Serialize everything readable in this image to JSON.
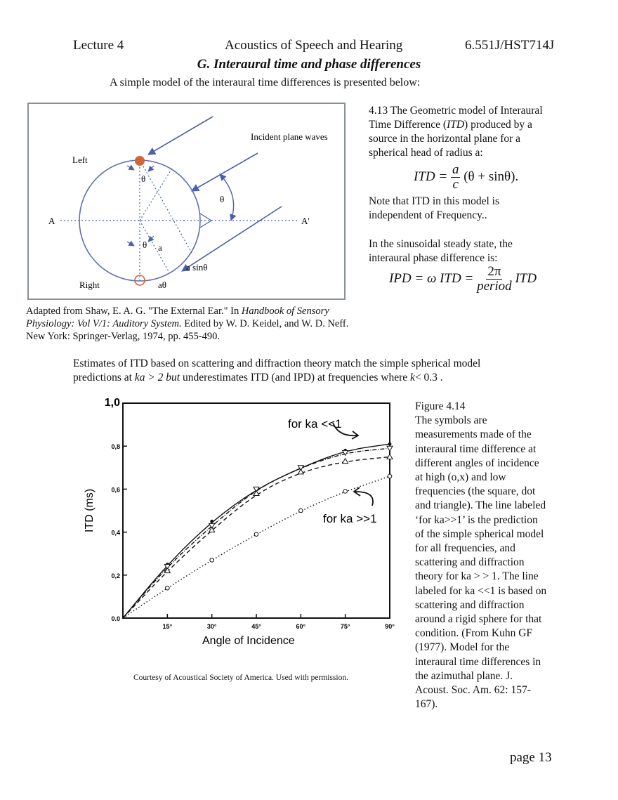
{
  "header": {
    "left": "Lecture 4",
    "center": "Acoustics of Speech and Hearing",
    "right": "6.551J/HST714J"
  },
  "section_title": "G. Interaural time and phase differences",
  "intro": "A simple model of the interaural time differences is presented below:",
  "diagram": {
    "labels": {
      "incident": "Incident plane waves",
      "left": "Left",
      "right": "Right",
      "a_left": "A",
      "a_right": "A'",
      "theta": "θ",
      "a": "a",
      "a_sin": "a sinθ",
      "a_theta": "aθ"
    },
    "colors": {
      "ear": "#d2643a",
      "lines": "#4a5fb0",
      "circle": "#5d6fb8"
    }
  },
  "side_text": {
    "line1": "4.13 The Geometric model of Interaural",
    "line2_pre": "Time Difference (",
    "line2_itd": "ITD",
    "line2_post": ") produced by a",
    "line3": "source in the horizontal plane for a",
    "line4": "spherical head of radius a:",
    "eq1_lhs": "ITD =",
    "eq1_num": "a",
    "eq1_den": "c",
    "eq1_rhs": "(θ + sinθ).",
    "note1": "Note that ITD in this model is",
    "note2": "independent of  Frequency..",
    "steady1": "In the sinusoidal steady state, the",
    "steady2": "interaural phase difference is:",
    "eq2_lhs": "IPD = ω ITD =",
    "eq2_num": "2π",
    "eq2_den": "period",
    "eq2_rhs": "ITD"
  },
  "citation": {
    "line1_pre": "Adapted from  Shaw, E. A. G. \"The External Ear.\" In ",
    "line1_it": "Handbook of Sensory",
    "line2_it": "Physiology: Vol V/1: Auditory System.",
    "line2_post": " Edited by W. D. Keidel, and W. D. Neff.",
    "line3": "New York: Springer-Verlag, 1974, pp. 455-490."
  },
  "paragraph": {
    "line1": "Estimates of ITD based on scattering and diffraction theory match the simple spherical model",
    "line2_a": "predictions at ",
    "line2_ka": "ka > 2 but",
    "line2_b": " underestimates ITD (and IPD) at frequencies where ",
    "line2_k": "k",
    "line2_c": "< 0.3 ."
  },
  "chart_data": {
    "type": "line",
    "xlabel": "Angle of Incidence",
    "ylabel": "ITD (ms)",
    "x_ticks": [
      "15°",
      "30°",
      "45°",
      "60°",
      "75°",
      "90°"
    ],
    "y_ticks": [
      "0.0",
      "0,2",
      "0,4",
      "0,6",
      "0,8",
      "1,0"
    ],
    "xlim": [
      0,
      90
    ],
    "ylim": [
      0,
      1.0
    ],
    "annotations": [
      "for ka <<1",
      "for ka >>1"
    ],
    "series": [
      {
        "x": [
          0,
          15,
          30,
          45,
          60,
          75,
          90
        ],
        "values": [
          0,
          0.25,
          0.45,
          0.6,
          0.7,
          0.78,
          0.81
        ]
      },
      {
        "x": [
          0,
          15,
          30,
          45,
          60,
          75,
          90
        ],
        "values": [
          0,
          0.24,
          0.43,
          0.6,
          0.7,
          0.77,
          0.79
        ]
      },
      {
        "x": [
          0,
          15,
          30,
          45,
          60,
          75,
          90
        ],
        "values": [
          0,
          0.22,
          0.41,
          0.58,
          0.68,
          0.73,
          0.75
        ]
      },
      {
        "x": [
          0,
          15,
          30,
          45,
          60,
          75,
          90
        ],
        "values": [
          0,
          0.14,
          0.27,
          0.39,
          0.5,
          0.59,
          0.66
        ]
      }
    ]
  },
  "figure_caption": [
    "Figure 4.14",
    "The symbols are",
    "measurements made of the",
    "interaural time difference at",
    "different angles of incidence",
    "at high (o,x) and low",
    "frequencies (the square, dot",
    "and triangle).  The line labeled",
    "‘for ka>>1’ is the prediction",
    "of the simple spherical model",
    "for all frequencies, and",
    "scattering and diffraction",
    "theory for ka > > 1.  The line",
    "labeled for ka <<1 is based on",
    "scattering and diffraction",
    "around a rigid sphere for that",
    "condition.   (From Kuhn GF",
    "(1977). Model for the",
    "interaural time differences in",
    "the azimuthal plane. J.",
    "Acoust. Soc. Am. 62: 157-",
    "167)."
  ],
  "courtesy": "Courtesy of Acoustical Society of America. Used with permission.",
  "page": "page 13"
}
